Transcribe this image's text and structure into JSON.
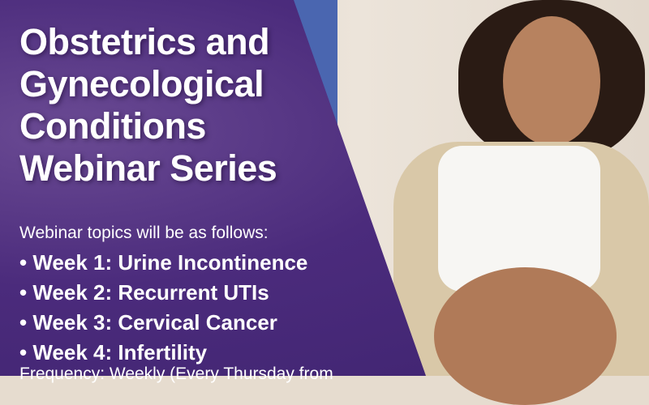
{
  "title": [
    "Obstetrics and",
    "Gynecological",
    "Conditions",
    "Webinar Series"
  ],
  "intro": "Webinar topics will be as follows:",
  "topics": [
    "Week 1: Urine Incontinence",
    "Week 2: Recurrent UTIs",
    "Week 3: Cervical Cancer",
    "Week 4: Infertility"
  ],
  "frequency": "Frequency: Weekly (Every Thursday from",
  "colors": {
    "panel": "#4b2b7c",
    "accent_stripe": "#4a66b0",
    "text": "#ffffff"
  }
}
